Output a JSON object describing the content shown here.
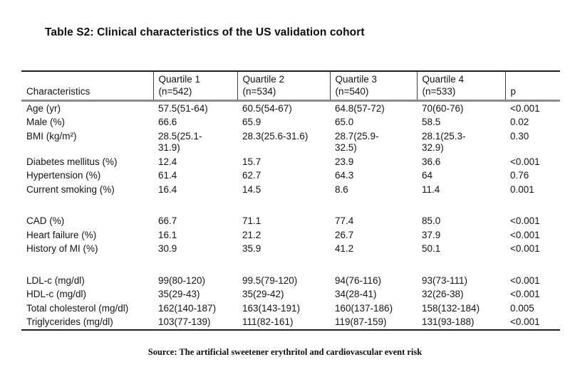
{
  "title": "Table S2: Clinical characteristics of the US validation cohort",
  "table": {
    "header": {
      "characteristics": "Characteristics",
      "columns": [
        {
          "line1": "Quartile 1",
          "line2": "(n=542)"
        },
        {
          "line1": "Quartile 2",
          "line2": "(n=534)"
        },
        {
          "line1": "Quartile 3",
          "line2": "(n=540)"
        },
        {
          "line1": "Quartile 4",
          "line2": "(n=533)"
        }
      ],
      "p_label": "p"
    },
    "rows": [
      {
        "label": "Age (yr)",
        "values": [
          "57.5(51-64)",
          "60.5(54-67)",
          "64.8(57-72)",
          "70(60-76)"
        ],
        "p": "<0.001"
      },
      {
        "label": "Male (%)",
        "values": [
          "66.6",
          "65.9",
          "65.0",
          "58.5"
        ],
        "p": "0.02"
      },
      {
        "label": "BMI (kg/m²)",
        "values": [
          "28.5(25.1-\n31.9)",
          "28.3(25.6-31.6)",
          "28.7(25.9-\n32.5)",
          "28.1(25.3-\n32.9)"
        ],
        "p": "0.30"
      },
      {
        "label": "Diabetes mellitus (%)",
        "values": [
          "12.4",
          "15.7",
          "23.9",
          "36.6"
        ],
        "p": "<0.001"
      },
      {
        "label": "Hypertension (%)",
        "values": [
          "61.4",
          "62.7",
          "64.3",
          "64"
        ],
        "p": "0.76"
      },
      {
        "label": "Current smoking (%)",
        "values": [
          "16.4",
          "14.5",
          "8.6",
          "11.4"
        ],
        "p": "0.001"
      },
      {
        "spacer": true
      },
      {
        "label": "CAD (%)",
        "values": [
          "66.7",
          "71.1",
          "77.4",
          "85.0"
        ],
        "p": "<0.001"
      },
      {
        "label": "Heart failure (%)",
        "values": [
          "16.1",
          "21.2",
          "26.7",
          "37.9"
        ],
        "p": "<0.001"
      },
      {
        "label": "History of MI (%)",
        "values": [
          "30.9",
          "35.9",
          "41.2",
          "50.1"
        ],
        "p": "<0.001"
      },
      {
        "spacer": true
      },
      {
        "label": "LDL-c (mg/dl)",
        "values": [
          "99(80-120)",
          "99.5(79-120)",
          "94(76-116)",
          "93(73-111)"
        ],
        "p": "<0.001"
      },
      {
        "label": "HDL-c (mg/dl)",
        "values": [
          "35(29-43)",
          "35(29-42)",
          "34(28-41)",
          "32(26-38)"
        ],
        "p": "<0.001"
      },
      {
        "label": "Total cholesterol (mg/dl)",
        "values": [
          "162(140-187)",
          "163(143-191)",
          "160(137-186)",
          "158(132-184)"
        ],
        "p": "0.005"
      },
      {
        "label": "Triglycerides (mg/dl)",
        "values": [
          "103(77-139)",
          "111(82-161)",
          "119(87-159)",
          "131(93-188)"
        ],
        "p": "<0.001"
      }
    ]
  },
  "source": "Source: The artificial sweetener erythritol and cardiovascular event risk",
  "colors": {
    "text": "#111111",
    "rule_dark": "#1f1f1f",
    "rule_gray": "#8a8a8a",
    "background": "#ffffff"
  }
}
